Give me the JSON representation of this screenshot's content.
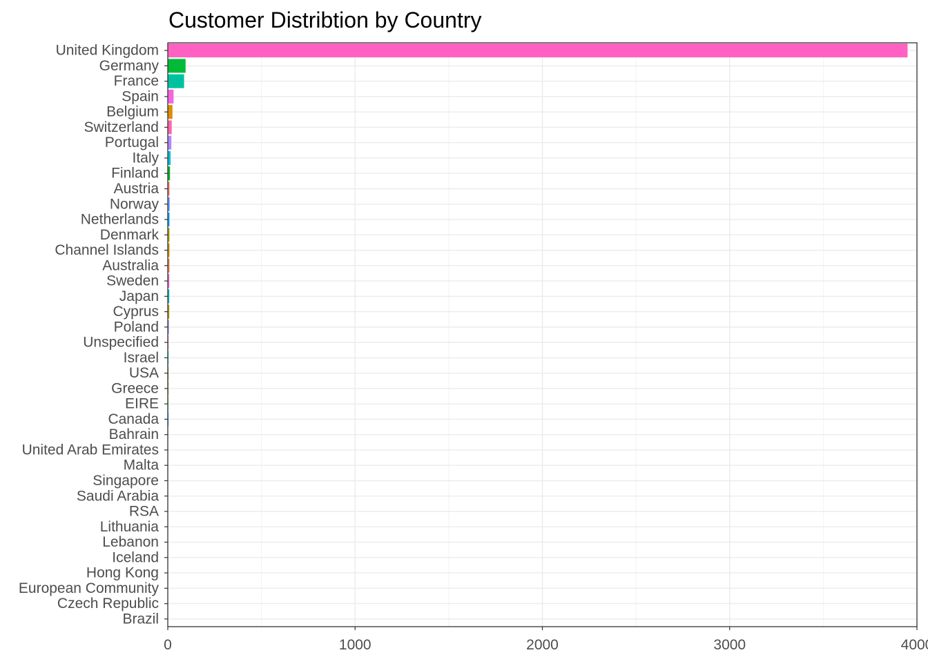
{
  "chart_data": {
    "type": "bar",
    "orientation": "horizontal",
    "title": "Customer Distribtion by Country",
    "xlabel": "",
    "ylabel": "",
    "xlim": [
      0,
      4000
    ],
    "x_ticks": [
      0,
      1000,
      2000,
      3000,
      4000
    ],
    "x_tick_labels": [
      "0",
      "1000",
      "2000",
      "3000",
      "4000"
    ],
    "grid": true,
    "legend": "none",
    "categories": [
      "United Kingdom",
      "Germany",
      "France",
      "Spain",
      "Belgium",
      "Switzerland",
      "Portugal",
      "Italy",
      "Finland",
      "Austria",
      "Norway",
      "Netherlands",
      "Denmark",
      "Channel Islands",
      "Australia",
      "Sweden",
      "Japan",
      "Cyprus",
      "Poland",
      "Unspecified",
      "Israel",
      "USA",
      "Greece",
      "EIRE",
      "Canada",
      "Bahrain",
      "United Arab Emirates",
      "Malta",
      "Singapore",
      "Saudi Arabia",
      "RSA",
      "Lithuania",
      "Lebanon",
      "Iceland",
      "Hong Kong",
      "European Community",
      "Czech Republic",
      "Brazil"
    ],
    "values": [
      3950,
      95,
      87,
      31,
      25,
      21,
      19,
      15,
      12,
      9,
      10,
      9,
      9,
      9,
      9,
      8,
      8,
      8,
      6,
      4,
      4,
      4,
      4,
      3,
      4,
      2,
      2,
      2,
      1,
      1,
      1,
      1,
      1,
      1,
      1,
      1,
      1,
      1
    ],
    "colors": [
      "#FF61C3",
      "#00BA38",
      "#00C19F",
      "#F564E3",
      "#DE8C00",
      "#FF64B0",
      "#B385FF",
      "#00BCD8",
      "#00B81F",
      "#F8766D",
      "#619CFF",
      "#00A5FF",
      "#AEA200",
      "#C99800",
      "#F07E4D",
      "#FB61D7",
      "#00BFC4",
      "#B79F00",
      "#8F91FF",
      "#FF6C91",
      "#00BDD0",
      "#7CAE00",
      "#A3A500",
      "#53B400",
      "#00B0F6",
      "#E76BF3",
      "#FF62BC",
      "#39B600",
      "#00BF7D",
      "#00C0AF",
      "#C77CFF",
      "#9590FF",
      "#D89000",
      "#E58700",
      "#00B6EB",
      "#64B200",
      "#00BE67",
      "#DB72FB"
    ]
  }
}
